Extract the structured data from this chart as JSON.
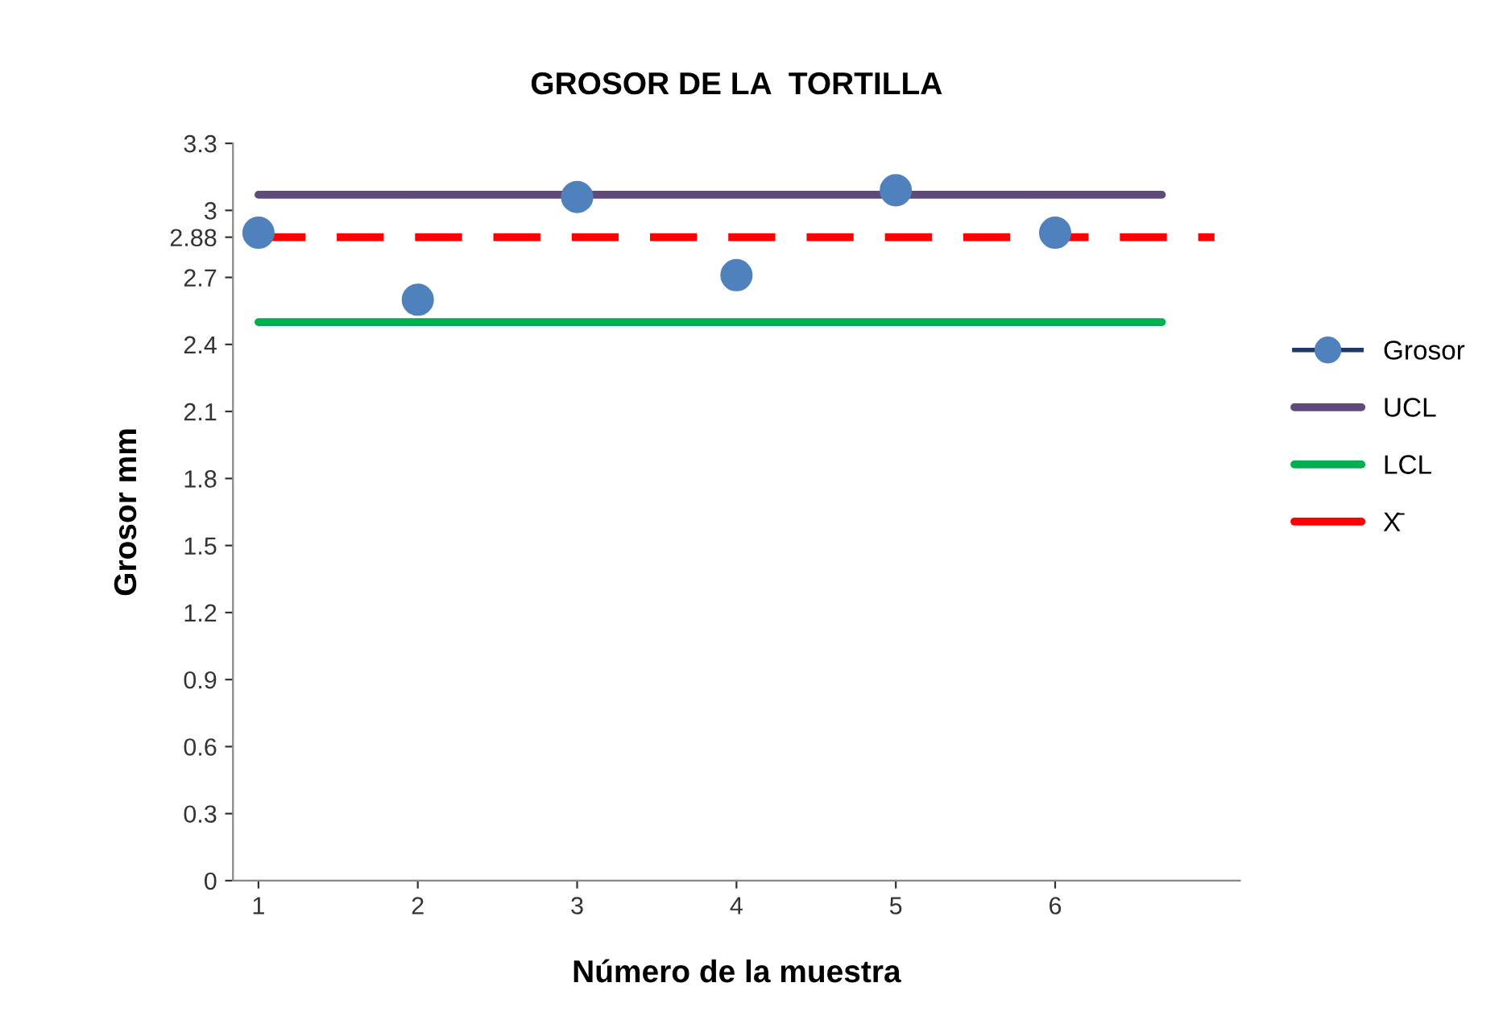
{
  "chart_data": {
    "type": "scatter",
    "title": "GROSOR DE LA  TORTILLA",
    "xlabel": "Número de la muestra",
    "ylabel": "Grosor mm",
    "xlim": [
      0.84,
      7.16
    ],
    "xticks": [
      1,
      2,
      3,
      4,
      5,
      6
    ],
    "ylim": [
      0,
      3.3
    ],
    "yticks": [
      0,
      0.3,
      0.6,
      0.9,
      1.2,
      1.5,
      1.8,
      2.1,
      2.4,
      2.7,
      2.88,
      3,
      3.3
    ],
    "grid": false,
    "legend": "right",
    "series": [
      {
        "name": "Grosor",
        "marker": "circle",
        "color": "#4f81bd",
        "x": [
          1,
          2,
          3,
          4,
          5,
          6
        ],
        "values": [
          2.9,
          2.6,
          3.06,
          2.71,
          3.09,
          2.9
        ]
      },
      {
        "name": "UCL",
        "type": "line",
        "color": "#604a7b",
        "line_style": "solid",
        "x": [
          1,
          6.67
        ],
        "values": [
          3.07,
          3.07
        ]
      },
      {
        "name": "LCL",
        "type": "line",
        "color": "#00b050",
        "line_style": "solid",
        "x": [
          1,
          6.67
        ],
        "values": [
          2.5,
          2.5
        ]
      },
      {
        "name": "X̄",
        "type": "line",
        "color": "#ff0000",
        "line_style": "dashed",
        "x": [
          1,
          7
        ],
        "values": [
          2.88,
          2.88
        ]
      }
    ]
  }
}
